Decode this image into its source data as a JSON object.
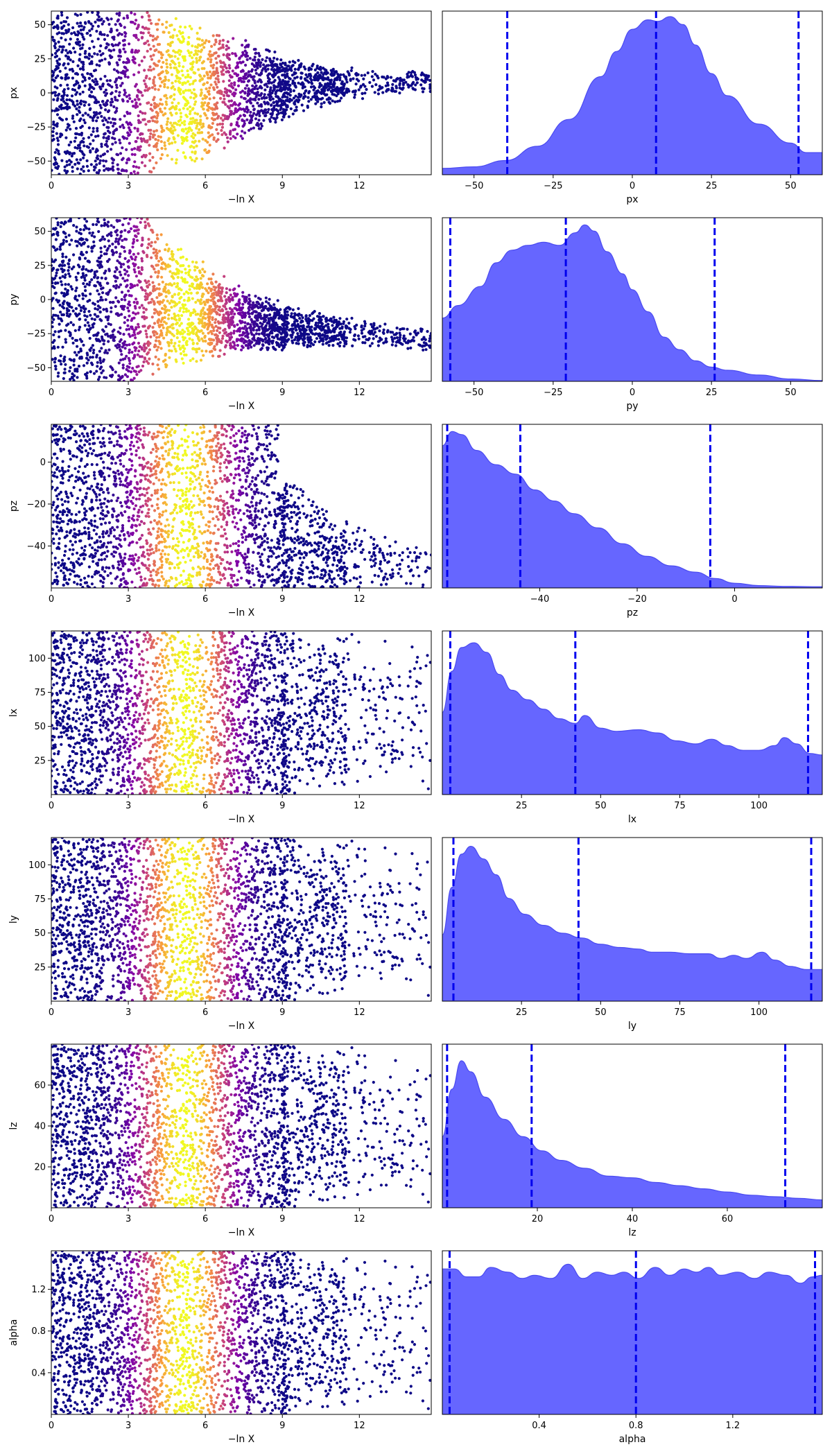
{
  "colors": {
    "density_fill": "#6666ff",
    "density_line": "#4a4af0",
    "quantile_line": "#0000ee",
    "colormap": "plasma"
  },
  "chart_data": [
    {
      "type": "scatter",
      "param": "px",
      "xlabel": "−ln X",
      "ylabel": "px",
      "xlim": [
        0,
        14.8
      ],
      "ylim": [
        -60,
        60
      ],
      "xticks": [
        "0",
        "3",
        "6",
        "9",
        "12"
      ],
      "yticks": [
        "50",
        "25",
        "0",
        "−25",
        "−50"
      ],
      "xtick_values": [
        0,
        3,
        6,
        9,
        12
      ],
      "ytick_values": [
        50,
        25,
        0,
        -25,
        -50
      ],
      "envelope": [
        [
          0,
          60
        ],
        [
          4,
          60
        ],
        [
          5.5,
          55
        ],
        [
          7,
          45
        ],
        [
          9,
          25
        ],
        [
          11,
          14
        ],
        [
          13,
          10
        ],
        [
          14.8,
          8
        ]
      ],
      "center": [
        [
          0,
          0
        ],
        [
          4,
          0
        ],
        [
          8,
          3
        ],
        [
          11,
          6
        ],
        [
          14.8,
          8
        ]
      ]
    },
    {
      "type": "area",
      "param": "px",
      "xlabel": "px",
      "xlim": [
        -60,
        60
      ],
      "xticks": [
        "−50",
        "−25",
        "0",
        "25",
        "50"
      ],
      "xtick_values": [
        -50,
        -25,
        0,
        25,
        50
      ],
      "density": [
        [
          -60,
          0.04
        ],
        [
          -50,
          0.05
        ],
        [
          -40,
          0.09
        ],
        [
          -30,
          0.18
        ],
        [
          -20,
          0.35
        ],
        [
          -10,
          0.62
        ],
        [
          -5,
          0.78
        ],
        [
          0,
          0.92
        ],
        [
          5,
          0.98
        ],
        [
          8,
          0.97
        ],
        [
          12,
          1.0
        ],
        [
          16,
          0.95
        ],
        [
          20,
          0.82
        ],
        [
          25,
          0.64
        ],
        [
          30,
          0.5
        ],
        [
          40,
          0.32
        ],
        [
          50,
          0.2
        ],
        [
          55,
          0.14
        ],
        [
          60,
          0.14
        ]
      ],
      "quantiles": [
        -39.5,
        7.5,
        52.5
      ]
    },
    {
      "type": "scatter",
      "param": "py",
      "xlabel": "−ln X",
      "ylabel": "py",
      "xlim": [
        0,
        14.8
      ],
      "ylim": [
        -60,
        60
      ],
      "xticks": [
        "0",
        "3",
        "6",
        "9",
        "12"
      ],
      "yticks": [
        "50",
        "25",
        "0",
        "−25",
        "−50"
      ],
      "xtick_values": [
        0,
        3,
        6,
        9,
        12
      ],
      "ytick_values": [
        50,
        25,
        0,
        -25,
        -50
      ],
      "envelope": [
        [
          0,
          60
        ],
        [
          4,
          60
        ],
        [
          5.5,
          42
        ],
        [
          7,
          28
        ],
        [
          9,
          18
        ],
        [
          11,
          12
        ],
        [
          13,
          10
        ],
        [
          14.8,
          9
        ]
      ],
      "center": [
        [
          0,
          0
        ],
        [
          4,
          0
        ],
        [
          6,
          -10
        ],
        [
          9,
          -20
        ],
        [
          12,
          -25
        ],
        [
          14.8,
          -30
        ]
      ]
    },
    {
      "type": "area",
      "param": "py",
      "xlabel": "py",
      "xlim": [
        -60,
        60
      ],
      "xticks": [
        "−50",
        "−25",
        "0",
        "25",
        "50"
      ],
      "xtick_values": [
        -50,
        -25,
        0,
        25,
        50
      ],
      "density": [
        [
          -60,
          0.4
        ],
        [
          -55,
          0.48
        ],
        [
          -48,
          0.6
        ],
        [
          -43,
          0.75
        ],
        [
          -38,
          0.83
        ],
        [
          -33,
          0.86
        ],
        [
          -28,
          0.88
        ],
        [
          -23,
          0.86
        ],
        [
          -18,
          0.94
        ],
        [
          -15,
          0.99
        ],
        [
          -12,
          0.95
        ],
        [
          -8,
          0.82
        ],
        [
          -3,
          0.68
        ],
        [
          0,
          0.58
        ],
        [
          5,
          0.44
        ],
        [
          10,
          0.28
        ],
        [
          15,
          0.2
        ],
        [
          20,
          0.13
        ],
        [
          25,
          0.09
        ],
        [
          30,
          0.07
        ],
        [
          40,
          0.04
        ],
        [
          50,
          0.015
        ],
        [
          60,
          0.005
        ]
      ],
      "quantiles": [
        -57.5,
        -21.0,
        26.0
      ]
    },
    {
      "type": "scatter",
      "param": "pz",
      "xlabel": "−ln X",
      "ylabel": "pz",
      "xlim": [
        0,
        14.8
      ],
      "ylim": [
        -60,
        18
      ],
      "xticks": [
        "0",
        "3",
        "6",
        "9",
        "12"
      ],
      "yticks": [
        "0",
        "−20",
        "−40"
      ],
      "xtick_values": [
        0,
        3,
        6,
        9,
        12
      ],
      "ytick_values": [
        0,
        -20,
        -40
      ],
      "envelope": [
        [
          0,
          78
        ],
        [
          3.5,
          78
        ],
        [
          5,
          68
        ],
        [
          7,
          50
        ],
        [
          9,
          38
        ],
        [
          11,
          22
        ],
        [
          13,
          14
        ],
        [
          14.8,
          10
        ]
      ],
      "center": [
        [
          0,
          -21
        ],
        [
          4,
          -21
        ],
        [
          8,
          -36
        ],
        [
          11,
          -46
        ],
        [
          14.8,
          -50
        ]
      ]
    },
    {
      "type": "area",
      "param": "pz",
      "xlabel": "pz",
      "xlim": [
        -60,
        18
      ],
      "xticks": [
        "−40",
        "−20",
        "0"
      ],
      "xtick_values": [
        -40,
        -20,
        0
      ],
      "density": [
        [
          -60,
          0.9
        ],
        [
          -58,
          0.99
        ],
        [
          -56,
          0.97
        ],
        [
          -53,
          0.87
        ],
        [
          -49,
          0.78
        ],
        [
          -45,
          0.72
        ],
        [
          -41,
          0.62
        ],
        [
          -37,
          0.55
        ],
        [
          -33,
          0.47
        ],
        [
          -28,
          0.38
        ],
        [
          -23,
          0.28
        ],
        [
          -18,
          0.2
        ],
        [
          -13,
          0.14
        ],
        [
          -8,
          0.1
        ],
        [
          -4,
          0.06
        ],
        [
          0,
          0.03
        ],
        [
          5,
          0.015
        ],
        [
          10,
          0.01
        ],
        [
          18,
          0.008
        ]
      ],
      "quantiles": [
        -59.0,
        -44.0,
        -5.0
      ]
    },
    {
      "type": "scatter",
      "param": "lx",
      "xlabel": "−ln X",
      "ylabel": "lx",
      "xlim": [
        0,
        14.8
      ],
      "ylim": [
        0,
        120
      ],
      "xticks": [
        "0",
        "3",
        "6",
        "9",
        "12"
      ],
      "yticks": [
        "100",
        "75",
        "50",
        "25"
      ],
      "xtick_values": [
        0,
        3,
        6,
        9,
        12
      ],
      "ytick_values": [
        100,
        75,
        50,
        25
      ],
      "envelope": [
        [
          0,
          60
        ],
        [
          14.8,
          60
        ]
      ],
      "center": [
        [
          0,
          60
        ],
        [
          14.8,
          60
        ]
      ]
    },
    {
      "type": "area",
      "param": "lx",
      "xlabel": "lx",
      "xlim": [
        0,
        120
      ],
      "xticks": [
        "25",
        "50",
        "75",
        "100"
      ],
      "xtick_values": [
        25,
        50,
        75,
        100
      ],
      "density": [
        [
          0,
          0.52
        ],
        [
          3,
          0.78
        ],
        [
          6,
          0.93
        ],
        [
          10,
          0.96
        ],
        [
          14,
          0.9
        ],
        [
          18,
          0.76
        ],
        [
          22,
          0.66
        ],
        [
          27,
          0.6
        ],
        [
          32,
          0.54
        ],
        [
          37,
          0.48
        ],
        [
          42,
          0.45
        ],
        [
          45,
          0.5
        ],
        [
          50,
          0.42
        ],
        [
          55,
          0.4
        ],
        [
          62,
          0.41
        ],
        [
          68,
          0.39
        ],
        [
          74,
          0.34
        ],
        [
          80,
          0.32
        ],
        [
          85,
          0.35
        ],
        [
          90,
          0.31
        ],
        [
          95,
          0.28
        ],
        [
          100,
          0.28
        ],
        [
          105,
          0.31
        ],
        [
          108,
          0.36
        ],
        [
          112,
          0.32
        ],
        [
          116,
          0.26
        ],
        [
          120,
          0.25
        ]
      ],
      "quantiles": [
        2.5,
        42.0,
        115.5
      ]
    },
    {
      "type": "scatter",
      "param": "ly",
      "xlabel": "−ln X",
      "ylabel": "ly",
      "xlim": [
        0,
        14.8
      ],
      "ylim": [
        0,
        120
      ],
      "xticks": [
        "0",
        "3",
        "6",
        "9",
        "12"
      ],
      "yticks": [
        "100",
        "75",
        "50",
        "25"
      ],
      "xtick_values": [
        0,
        3,
        6,
        9,
        12
      ],
      "ytick_values": [
        100,
        75,
        50,
        25
      ],
      "envelope": [
        [
          0,
          60
        ],
        [
          14.8,
          60
        ]
      ],
      "center": [
        [
          0,
          60
        ],
        [
          14.8,
          60
        ]
      ]
    },
    {
      "type": "area",
      "param": "ly",
      "xlabel": "ly",
      "xlim": [
        0,
        120
      ],
      "xticks": [
        "25",
        "50",
        "75",
        "100"
      ],
      "xtick_values": [
        25,
        50,
        75,
        100
      ],
      "density": [
        [
          0,
          0.42
        ],
        [
          3,
          0.72
        ],
        [
          6,
          0.93
        ],
        [
          9,
          0.98
        ],
        [
          13,
          0.9
        ],
        [
          17,
          0.8
        ],
        [
          21,
          0.65
        ],
        [
          26,
          0.55
        ],
        [
          32,
          0.48
        ],
        [
          38,
          0.43
        ],
        [
          44,
          0.4
        ],
        [
          50,
          0.36
        ],
        [
          56,
          0.34
        ],
        [
          62,
          0.33
        ],
        [
          66,
          0.31
        ],
        [
          72,
          0.31
        ],
        [
          78,
          0.3
        ],
        [
          84,
          0.3
        ],
        [
          88,
          0.27
        ],
        [
          92,
          0.29
        ],
        [
          96,
          0.27
        ],
        [
          101,
          0.31
        ],
        [
          105,
          0.26
        ],
        [
          110,
          0.22
        ],
        [
          115,
          0.2
        ],
        [
          120,
          0.2
        ]
      ],
      "quantiles": [
        3.5,
        43.0,
        116.5
      ]
    },
    {
      "type": "scatter",
      "param": "lz",
      "xlabel": "−ln X",
      "ylabel": "lz",
      "xlim": [
        0,
        14.8
      ],
      "ylim": [
        0,
        80
      ],
      "xticks": [
        "0",
        "3",
        "6",
        "9",
        "12"
      ],
      "yticks": [
        "60",
        "40",
        "20"
      ],
      "xtick_values": [
        0,
        3,
        6,
        9,
        12
      ],
      "ytick_values": [
        60,
        40,
        20
      ],
      "envelope": [
        [
          0,
          40
        ],
        [
          14.8,
          40
        ]
      ],
      "center": [
        [
          0,
          40
        ],
        [
          14.8,
          40
        ]
      ]
    },
    {
      "type": "area",
      "param": "lz",
      "xlabel": "lz",
      "xlim": [
        0,
        80
      ],
      "xticks": [
        "20",
        "40",
        "60"
      ],
      "xtick_values": [
        20,
        40,
        60
      ],
      "density": [
        [
          0,
          0.45
        ],
        [
          2,
          0.75
        ],
        [
          4,
          0.93
        ],
        [
          6,
          0.86
        ],
        [
          9,
          0.7
        ],
        [
          13,
          0.56
        ],
        [
          17,
          0.45
        ],
        [
          21,
          0.36
        ],
        [
          25,
          0.3
        ],
        [
          30,
          0.25
        ],
        [
          35,
          0.2
        ],
        [
          40,
          0.19
        ],
        [
          45,
          0.16
        ],
        [
          50,
          0.14
        ],
        [
          55,
          0.12
        ],
        [
          60,
          0.1
        ],
        [
          65,
          0.08
        ],
        [
          70,
          0.07
        ],
        [
          75,
          0.06
        ],
        [
          80,
          0.05
        ]
      ],
      "quantiles": [
        1.0,
        18.8,
        72.2
      ]
    },
    {
      "type": "scatter",
      "param": "alpha",
      "xlabel": "−ln X",
      "ylabel": "alpha",
      "xlim": [
        0,
        14.8
      ],
      "ylim": [
        0,
        1.57
      ],
      "xticks": [
        "0",
        "3",
        "6",
        "9",
        "12"
      ],
      "yticks": [
        "1.2",
        "0.8",
        "0.4"
      ],
      "xtick_values": [
        0,
        3,
        6,
        9,
        12
      ],
      "ytick_values": [
        1.2,
        0.8,
        0.4
      ],
      "envelope": [
        [
          0,
          0.785
        ],
        [
          14.8,
          0.785
        ]
      ],
      "center": [
        [
          0,
          0.785
        ],
        [
          14.8,
          0.785
        ]
      ]
    },
    {
      "type": "area",
      "param": "alpha",
      "xlabel": "alpha",
      "xlim": [
        0,
        1.57
      ],
      "xticks": [
        "0.4",
        "0.8",
        "1.2"
      ],
      "xtick_values": [
        0.4,
        0.8,
        1.2
      ],
      "density": [
        [
          0,
          0.92
        ],
        [
          0.05,
          0.92
        ],
        [
          0.1,
          0.87
        ],
        [
          0.15,
          0.87
        ],
        [
          0.2,
          0.93
        ],
        [
          0.27,
          0.9
        ],
        [
          0.33,
          0.86
        ],
        [
          0.38,
          0.88
        ],
        [
          0.45,
          0.86
        ],
        [
          0.52,
          0.95
        ],
        [
          0.58,
          0.86
        ],
        [
          0.64,
          0.9
        ],
        [
          0.7,
          0.88
        ],
        [
          0.75,
          0.9
        ],
        [
          0.81,
          0.86
        ],
        [
          0.88,
          0.93
        ],
        [
          0.94,
          0.88
        ],
        [
          1.0,
          0.92
        ],
        [
          1.05,
          0.9
        ],
        [
          1.1,
          0.93
        ],
        [
          1.15,
          0.88
        ],
        [
          1.22,
          0.9
        ],
        [
          1.29,
          0.86
        ],
        [
          1.35,
          0.9
        ],
        [
          1.42,
          0.88
        ],
        [
          1.48,
          0.83
        ],
        [
          1.53,
          0.87
        ],
        [
          1.57,
          0.88
        ]
      ],
      "quantiles": [
        0.03,
        0.8,
        1.54
      ]
    }
  ]
}
